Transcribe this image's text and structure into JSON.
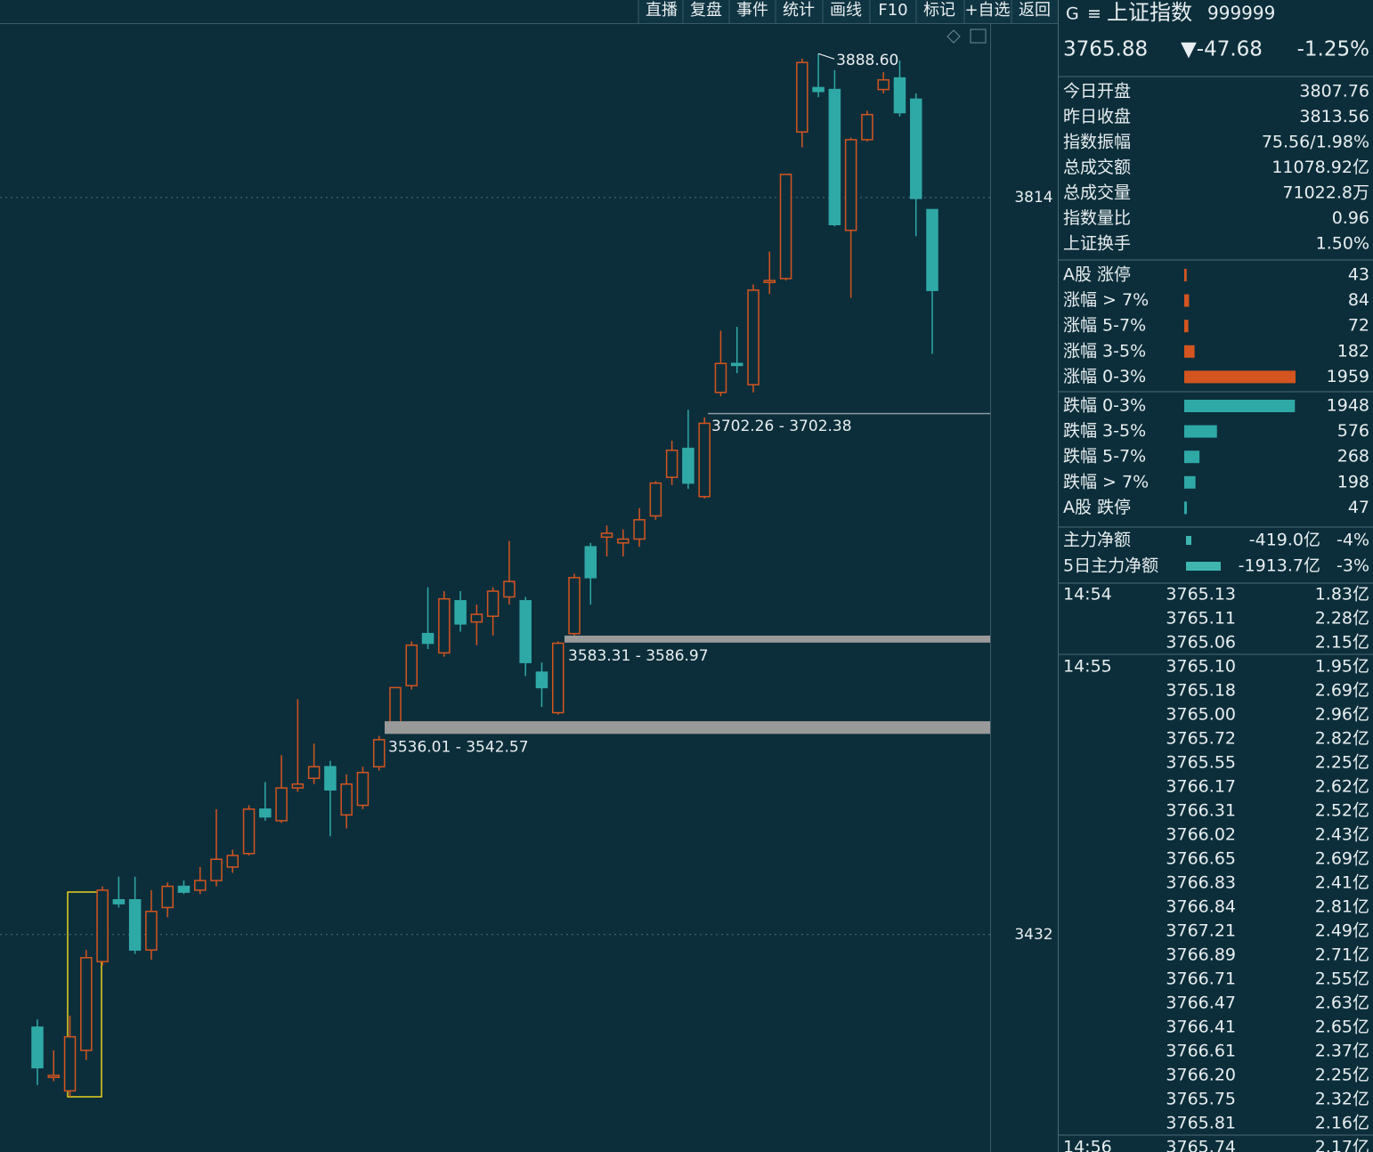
{
  "toolbar": [
    "直播",
    "复盘",
    "事件",
    "统计",
    "画线",
    "F10",
    "标记",
    "+自选",
    "返回"
  ],
  "chart_data": {
    "type": "candlestick",
    "up_color": "#d4551f",
    "down_color": "#2fa9a6",
    "open": [
      3384,
      3358,
      3351,
      3372,
      3418,
      3450,
      3450,
      3424,
      3446,
      3457,
      3455,
      3460,
      3467,
      3474,
      3497,
      3491,
      3508,
      3513,
      3519,
      3494,
      3499,
      3519,
      3542,
      3561,
      3588,
      3578,
      3605,
      3594,
      3597,
      3607,
      3605,
      3568,
      3547,
      3588,
      3633,
      3638,
      3635,
      3637,
      3649,
      3669,
      3684,
      3659,
      3713,
      3728,
      3717,
      3770,
      3772,
      3848,
      3871,
      3870,
      3797,
      3844,
      3870,
      3876,
      3865,
      3807.76
    ],
    "high": [
      3388,
      3372,
      3390,
      3424,
      3457,
      3462,
      3462,
      3455,
      3459,
      3460,
      3467,
      3497,
      3476,
      3499,
      3511,
      3525,
      3554,
      3531,
      3522,
      3515,
      3519,
      3535,
      3560,
      3584,
      3612,
      3610,
      3610,
      3603,
      3612,
      3636,
      3607,
      3573,
      3584,
      3619,
      3635,
      3644,
      3642,
      3653,
      3667,
      3688,
      3704,
      3700,
      3745,
      3747,
      3769,
      3786,
      3826,
      3886,
      3888.6,
      3880,
      3845,
      3859,
      3879,
      3885,
      3868,
      3808
    ],
    "low": [
      3354,
      3356,
      3348,
      3367,
      3416,
      3446,
      3422,
      3419,
      3441,
      3453,
      3453,
      3457,
      3464,
      3473,
      3491,
      3490,
      3506,
      3510,
      3483,
      3487,
      3497,
      3517,
      3540,
      3559,
      3580,
      3576,
      3589,
      3582,
      3587,
      3603,
      3566,
      3550,
      3546,
      3587,
      3603,
      3628,
      3628,
      3633,
      3647,
      3665,
      3663,
      3658,
      3711,
      3723,
      3713,
      3764,
      3771,
      3840,
      3866,
      3799,
      3762,
      3843,
      3868,
      3856,
      3794,
      3733
    ],
    "close": [
      3363,
      3359,
      3379,
      3420,
      3455,
      3448,
      3424,
      3444,
      3457,
      3454,
      3460,
      3471,
      3473,
      3497,
      3493,
      3508,
      3510,
      3519,
      3507,
      3510,
      3516,
      3533,
      3560,
      3582,
      3583,
      3606,
      3593,
      3598,
      3610,
      3615,
      3573,
      3560,
      3583,
      3617,
      3617,
      3640,
      3637,
      3647,
      3666,
      3683,
      3666,
      3697,
      3728,
      3727,
      3766,
      3771,
      3826,
      3884,
      3869,
      3800,
      3844,
      3857,
      3875,
      3858,
      3813.56,
      3765.88
    ],
    "ylim": [
      3319.3,
      3904.4
    ],
    "yticks": [
      3432,
      3814
    ],
    "high_label": {
      "value": 3888.6,
      "label": "3888.60"
    },
    "zones": [
      {
        "label": "3702.26 - 3702.38",
        "low": 3702.26,
        "high": 3702.38
      },
      {
        "label": "3583.31 - 3586.97",
        "low": 3583.31,
        "high": 3586.97
      },
      {
        "label": "3536.01 - 3542.57",
        "low": 3536.01,
        "high": 3542.57
      }
    ]
  },
  "quote": {
    "mark": "G",
    "menu": "≡",
    "name": "上证指数",
    "code": "999999",
    "price": "3765.88",
    "change": "▼-47.68",
    "change_pct": "-1.25%"
  },
  "stats": [
    {
      "label": "今日开盘",
      "value": "3807.76",
      "tone": "down"
    },
    {
      "label": "昨日收盘",
      "value": "3813.56",
      "tone": "flat"
    },
    {
      "label": "指数振幅",
      "value": "75.56/1.98%",
      "tone": "flat"
    },
    {
      "label": "总成交额",
      "value": "11078.92亿",
      "tone": "vol"
    },
    {
      "label": "总成交量",
      "value": "71022.8万",
      "tone": "vol"
    },
    {
      "label": "指数量比",
      "value": "0.96",
      "tone": "down"
    },
    {
      "label": "上证换手",
      "value": "1.50%",
      "tone": "flat"
    }
  ],
  "distribution": {
    "up": [
      {
        "label": "A股 涨停",
        "count": 43
      },
      {
        "label": "涨幅 > 7%",
        "count": 84
      },
      {
        "label": "涨幅 5-7%",
        "count": 72
      },
      {
        "label": "涨幅 3-5%",
        "count": 182
      },
      {
        "label": "涨幅 0-3%",
        "count": 1959
      }
    ],
    "down": [
      {
        "label": "跌幅 0-3%",
        "count": 1948
      },
      {
        "label": "跌幅 3-5%",
        "count": 576
      },
      {
        "label": "跌幅 5-7%",
        "count": 268
      },
      {
        "label": "跌幅 > 7%",
        "count": 198
      },
      {
        "label": "A股 跌停",
        "count": 47
      }
    ]
  },
  "money_flow": [
    {
      "label": "主力净额",
      "amount": "-419.0亿",
      "pct": "-4%"
    },
    {
      "label": "5日主力净额",
      "amount": "-1913.7亿",
      "pct": "-3%"
    }
  ],
  "ticks": [
    {
      "time": "14:54",
      "rows": [
        [
          "3765.13",
          "1.83亿"
        ],
        [
          "3765.11",
          "2.28亿"
        ],
        [
          "3765.06",
          "2.15亿"
        ]
      ]
    },
    {
      "time": "14:55",
      "rows": [
        [
          "3765.10",
          "1.95亿"
        ],
        [
          "3765.18",
          "2.69亿"
        ],
        [
          "3765.00",
          "2.96亿"
        ],
        [
          "3765.72",
          "2.82亿"
        ],
        [
          "3765.55",
          "2.25亿"
        ],
        [
          "3766.17",
          "2.62亿"
        ],
        [
          "3766.31",
          "2.52亿"
        ],
        [
          "3766.02",
          "2.43亿"
        ],
        [
          "3766.65",
          "2.69亿"
        ],
        [
          "3766.83",
          "2.41亿"
        ],
        [
          "3766.84",
          "2.81亿"
        ],
        [
          "3767.21",
          "2.49亿"
        ],
        [
          "3766.89",
          "2.71亿"
        ],
        [
          "3766.71",
          "2.55亿"
        ],
        [
          "3766.47",
          "2.63亿"
        ],
        [
          "3766.41",
          "2.65亿"
        ],
        [
          "3766.61",
          "2.37亿"
        ],
        [
          "3766.20",
          "2.25亿"
        ],
        [
          "3765.75",
          "2.32亿"
        ],
        [
          "3765.81",
          "2.16亿"
        ]
      ]
    },
    {
      "time": "14:56",
      "rows": [
        [
          "3765.74",
          "2.17亿"
        ]
      ]
    }
  ]
}
